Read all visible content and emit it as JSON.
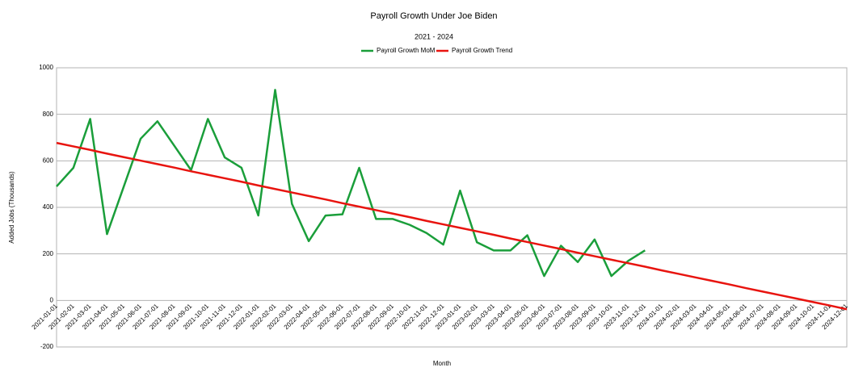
{
  "chart_data": {
    "type": "line",
    "title": "Payroll Growth Under Joe Biden",
    "subtitle": "2021 - 2024",
    "x_label": "Month",
    "y_label": "Added Jobs (Thousands)",
    "categories": [
      "2021-01-01",
      "2021-02-01",
      "2021-03-01",
      "2021-04-01",
      "2021-05-01",
      "2021-06-01",
      "2021-07-01",
      "2021-08-01",
      "2021-09-01",
      "2021-10-01",
      "2021-11-01",
      "2021-12-01",
      "2022-01-01",
      "2022-02-01",
      "2022-03-01",
      "2022-04-01",
      "2022-05-01",
      "2022-06-01",
      "2022-07-01",
      "2022-08-01",
      "2022-09-01",
      "2022-10-01",
      "2022-11-01",
      "2022-12-01",
      "2023-01-01",
      "2023-02-01",
      "2023-03-01",
      "2023-04-01",
      "2023-05-01",
      "2023-06-01",
      "2023-07-01",
      "2023-08-01",
      "2023-09-01",
      "2023-10-01",
      "2023-11-01",
      "2023-12-01",
      "2024-01-01",
      "2024-02-01",
      "2024-03-01",
      "2024-04-01",
      "2024-05-01",
      "2024-06-01",
      "2024-07-01",
      "2024-08-01",
      "2024-09-01",
      "2024-10-01",
      "2024-11-01",
      "2024-12-01"
    ],
    "series": [
      {
        "name": "Payroll Growth MoM",
        "color": "#1a9e3a",
        "values": [
          490,
          570,
          780,
          285,
          490,
          695,
          770,
          665,
          560,
          780,
          615,
          570,
          365,
          905,
          415,
          255,
          365,
          370,
          570,
          350,
          350,
          325,
          290,
          240,
          472,
          250,
          215,
          215,
          280,
          105,
          235,
          165,
          262,
          105,
          170,
          215,
          null,
          null,
          null,
          null,
          null,
          null,
          null,
          null,
          null,
          null,
          null,
          null
        ]
      },
      {
        "name": "Payroll Growth Trend",
        "color": "#e8140f",
        "values": [
          677,
          662,
          647,
          631,
          616,
          601,
          586,
          571,
          555,
          540,
          525,
          510,
          494,
          479,
          464,
          449,
          434,
          418,
          403,
          388,
          373,
          358,
          342,
          327,
          312,
          297,
          282,
          266,
          251,
          236,
          221,
          205,
          190,
          175,
          160,
          145,
          129,
          114,
          99,
          84,
          69,
          53,
          38,
          23,
          8,
          -7,
          -22,
          -38
        ]
      }
    ],
    "ylim": [
      -200,
      1000
    ],
    "yticks": [
      -200,
      0,
      200,
      400,
      600,
      800,
      1000
    ],
    "grid": true,
    "legend": "top"
  }
}
